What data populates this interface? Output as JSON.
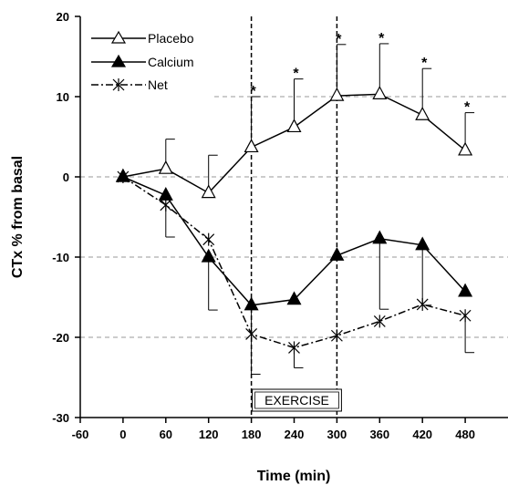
{
  "chart_data": {
    "type": "line",
    "title": "",
    "xlabel": "Time (min)",
    "ylabel": "CTx % from basal",
    "xlim": [
      -60,
      540
    ],
    "ylim": [
      -30,
      20
    ],
    "x_ticks": [
      -60,
      0,
      60,
      120,
      180,
      240,
      300,
      360,
      420,
      480
    ],
    "y_ticks": [
      -30,
      -20,
      -10,
      0,
      10,
      20
    ],
    "grid": "horizontal dashed",
    "legend_position": "top-left",
    "x": [
      0,
      60,
      120,
      180,
      240,
      300,
      360,
      420,
      480
    ],
    "series": [
      {
        "name": "Placebo",
        "marker": "open-triangle",
        "line": "solid",
        "values": [
          0,
          1,
          -2,
          3.7,
          6.2,
          10.1,
          10.3,
          7.7,
          3.3
        ],
        "error_up": [
          null,
          3.7,
          4.7,
          6.3,
          6.0,
          6.4,
          6.3,
          5.8,
          4.7
        ]
      },
      {
        "name": "Calcium",
        "marker": "filled-triangle",
        "line": "solid",
        "values": [
          0,
          -2.3,
          -10,
          -16,
          -15.3,
          -9.8,
          -7.7,
          -8.5,
          -14.3
        ],
        "error_down": [
          null,
          null,
          6.6,
          8.6,
          null,
          null,
          8.8,
          7.5,
          null
        ]
      },
      {
        "name": "Net",
        "marker": "asterisk",
        "line": "dash-dot",
        "values": [
          0,
          -3.5,
          -7.8,
          -19.6,
          -21.3,
          -19.8,
          -18,
          -15.9,
          -17.3
        ],
        "error_down": [
          null,
          4.0,
          null,
          null,
          2.5,
          null,
          null,
          null,
          4.6
        ]
      }
    ],
    "significance_marks": {
      "symbol": "*",
      "x": [
        180,
        240,
        300,
        360,
        420,
        480
      ]
    },
    "exercise_period": {
      "label": "EXERCISE",
      "x_start": 180,
      "x_end": 300
    }
  }
}
